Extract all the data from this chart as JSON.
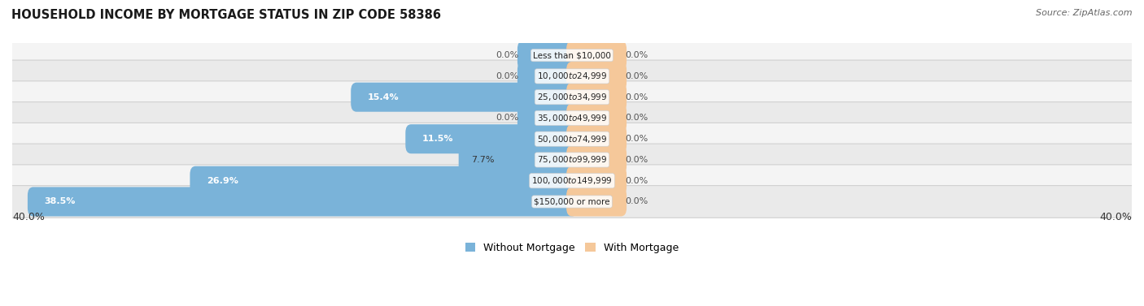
{
  "title": "HOUSEHOLD INCOME BY MORTGAGE STATUS IN ZIP CODE 58386",
  "source": "Source: ZipAtlas.com",
  "categories": [
    "Less than $10,000",
    "$10,000 to $24,999",
    "$25,000 to $34,999",
    "$35,000 to $49,999",
    "$50,000 to $74,999",
    "$75,000 to $99,999",
    "$100,000 to $149,999",
    "$150,000 or more"
  ],
  "without_mortgage": [
    0.0,
    0.0,
    15.4,
    0.0,
    11.5,
    7.7,
    26.9,
    38.5
  ],
  "with_mortgage": [
    0.0,
    0.0,
    0.0,
    0.0,
    0.0,
    0.0,
    0.0,
    0.0
  ],
  "color_without": "#7ab3d9",
  "color_with": "#f5c89a",
  "xlim": 40.0,
  "stub_size": 3.5,
  "legend_without": "Without Mortgage",
  "legend_with": "With Mortgage",
  "title_fontsize": 10.5,
  "source_fontsize": 8,
  "bar_label_fontsize": 8,
  "category_fontsize": 7.5,
  "axis_label_fontsize": 9
}
